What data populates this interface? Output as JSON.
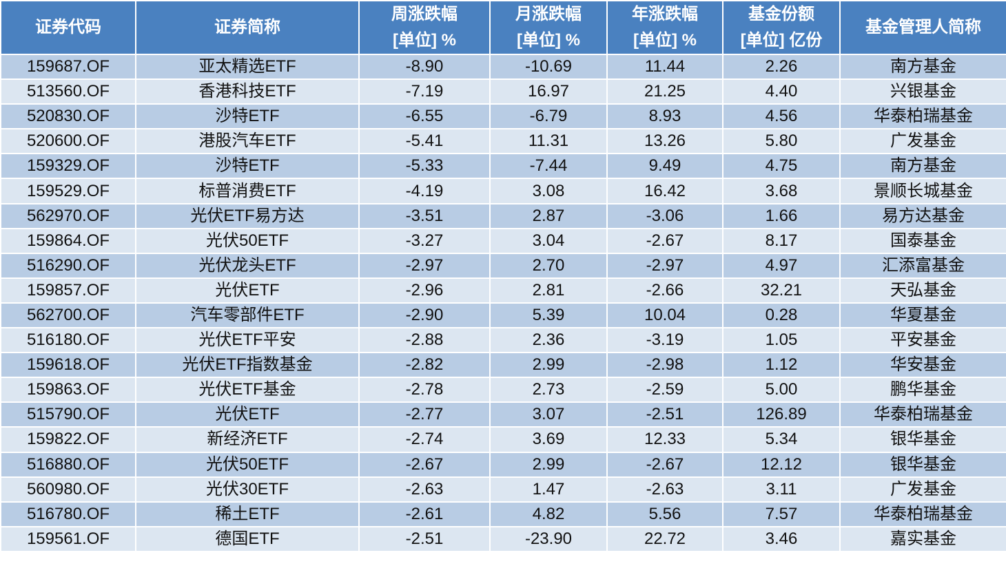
{
  "table": {
    "header": [
      [
        "证券代码"
      ],
      [
        "证券简称"
      ],
      [
        "周涨跌幅",
        "[单位] %"
      ],
      [
        "月涨跌幅",
        "[单位] %"
      ],
      [
        "年涨跌幅",
        "[单位] %"
      ],
      [
        "基金份额",
        "[单位] 亿份"
      ],
      [
        "基金管理人简称"
      ]
    ],
    "rows": [
      [
        "159687.OF",
        "亚太精选ETF",
        "-8.90",
        "-10.69",
        "11.44",
        "2.26",
        "南方基金"
      ],
      [
        "513560.OF",
        "香港科技ETF",
        "-7.19",
        "16.97",
        "21.25",
        "4.40",
        "兴银基金"
      ],
      [
        "520830.OF",
        "沙特ETF",
        "-6.55",
        "-6.79",
        "8.93",
        "4.56",
        "华泰柏瑞基金"
      ],
      [
        "520600.OF",
        "港股汽车ETF",
        "-5.41",
        "11.31",
        "13.26",
        "5.80",
        "广发基金"
      ],
      [
        "159329.OF",
        "沙特ETF",
        "-5.33",
        "-7.44",
        "9.49",
        "4.75",
        "南方基金"
      ],
      [
        "159529.OF",
        "标普消费ETF",
        "-4.19",
        "3.08",
        "16.42",
        "3.68",
        "景顺长城基金"
      ],
      [
        "562970.OF",
        "光伏ETF易方达",
        "-3.51",
        "2.87",
        "-3.06",
        "1.66",
        "易方达基金"
      ],
      [
        "159864.OF",
        "光伏50ETF",
        "-3.27",
        "3.04",
        "-2.67",
        "8.17",
        "国泰基金"
      ],
      [
        "516290.OF",
        "光伏龙头ETF",
        "-2.97",
        "2.70",
        "-2.97",
        "4.97",
        "汇添富基金"
      ],
      [
        "159857.OF",
        "光伏ETF",
        "-2.96",
        "2.81",
        "-2.66",
        "32.21",
        "天弘基金"
      ],
      [
        "562700.OF",
        "汽车零部件ETF",
        "-2.90",
        "5.39",
        "10.04",
        "0.28",
        "华夏基金"
      ],
      [
        "516180.OF",
        "光伏ETF平安",
        "-2.88",
        "2.36",
        "-3.19",
        "1.05",
        "平安基金"
      ],
      [
        "159618.OF",
        "光伏ETF指数基金",
        "-2.82",
        "2.99",
        "-2.98",
        "1.12",
        "华安基金"
      ],
      [
        "159863.OF",
        "光伏ETF基金",
        "-2.78",
        "2.73",
        "-2.59",
        "5.00",
        "鹏华基金"
      ],
      [
        "515790.OF",
        "光伏ETF",
        "-2.77",
        "3.07",
        "-2.51",
        "126.89",
        "华泰柏瑞基金"
      ],
      [
        "159822.OF",
        "新经济ETF",
        "-2.74",
        "3.69",
        "12.33",
        "5.34",
        "银华基金"
      ],
      [
        "516880.OF",
        "光伏50ETF",
        "-2.67",
        "2.99",
        "-2.67",
        "12.12",
        "银华基金"
      ],
      [
        "560980.OF",
        "光伏30ETF",
        "-2.63",
        "1.47",
        "-2.63",
        "3.11",
        "广发基金"
      ],
      [
        "516780.OF",
        "稀土ETF",
        "-2.61",
        "4.82",
        "5.56",
        "7.57",
        "华泰柏瑞基金"
      ],
      [
        "159561.OF",
        "德国ETF",
        "-2.51",
        "-23.90",
        "22.72",
        "3.46",
        "嘉实基金"
      ]
    ]
  }
}
